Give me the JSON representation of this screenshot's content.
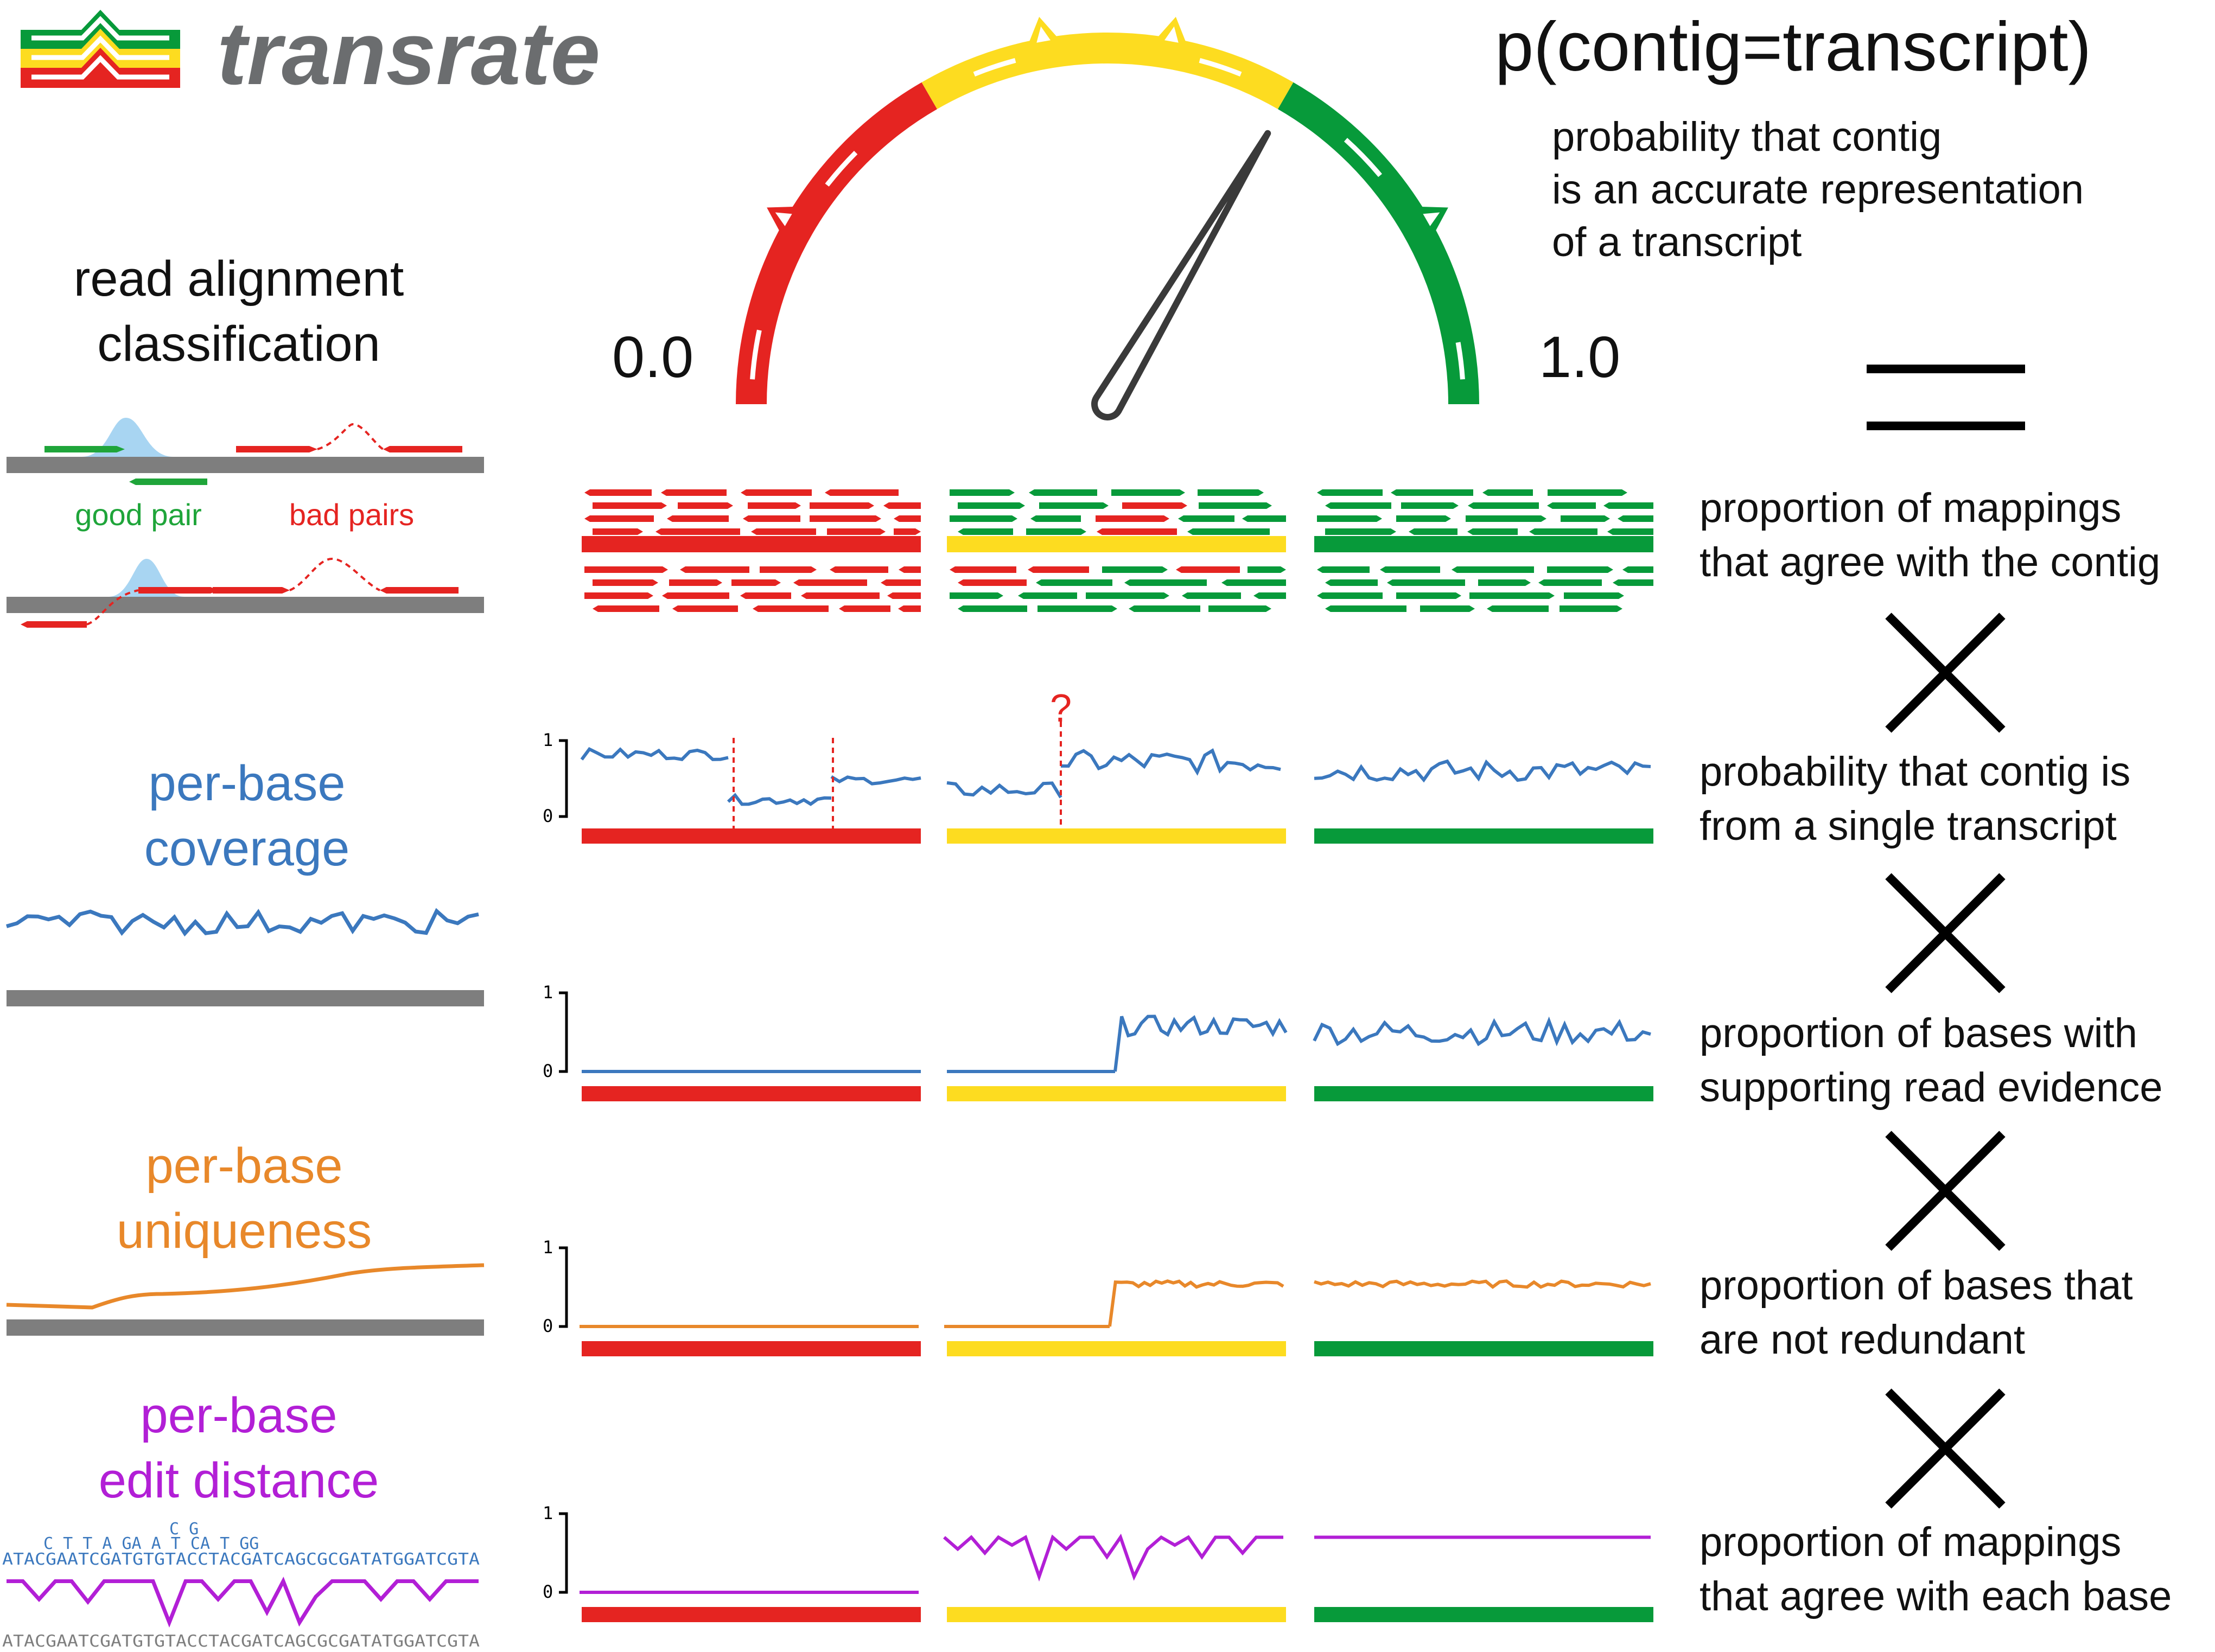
{
  "logo": {
    "text": "transrate"
  },
  "header": {
    "formula": "p(contig=transcript)"
  },
  "gauge": {
    "min_label": "0.0",
    "max_label": "1.0",
    "colors": [
      "#e52421",
      "#fddc20",
      "#079a3a"
    ],
    "needle_value": 0.67
  },
  "definition": {
    "lines": [
      "probability that contig",
      "is an accurate representation",
      "of a transcript"
    ]
  },
  "operators": {
    "equals": "=",
    "times": "×"
  },
  "left_panels": {
    "read_alignment": {
      "title_lines": [
        "read alignment",
        "classification"
      ],
      "good_label": "good pair",
      "bad_label": "bad pairs"
    },
    "coverage": {
      "title_lines": [
        "per-base",
        "coverage"
      ]
    },
    "uniqueness": {
      "title_lines": [
        "per-base",
        "uniqueness"
      ]
    },
    "edit_distance": {
      "title_lines": [
        "per-base",
        "edit distance"
      ],
      "variant_top": "C G",
      "variant_mid": "C T T A GA A T CA T GG",
      "sequence_ref": "ATACGAATCGATGTGTACCTACGATCAGCGCGATATGGATCGTA",
      "sequence_bottom": "ATACGAATCGATGTGTACCTACGATCAGCGCGATATGGATCGTA"
    }
  },
  "row_axes": {
    "y_max": "1",
    "y_min": "0",
    "question_mark": "?"
  },
  "row_descriptions": [
    [
      "proportion of mappings",
      "that agree with the contig"
    ],
    [
      "probability that contig is",
      "from a single transcript"
    ],
    [
      "proportion of bases with",
      "supporting read evidence"
    ],
    [
      "proportion of bases that",
      "are not redundant"
    ],
    [
      "proportion of mappings",
      "that agree with each base"
    ]
  ],
  "colors": {
    "red": "#e52421",
    "yellow": "#fddc20",
    "green": "#079a3a",
    "coverage_blue": "#3b78be",
    "uniqueness_orange": "#e8882a",
    "edit_purple": "#b21fd6",
    "grey": "#7e7e7e",
    "good_green": "#1fa53a",
    "peak_blue": "#a8d5f2"
  }
}
